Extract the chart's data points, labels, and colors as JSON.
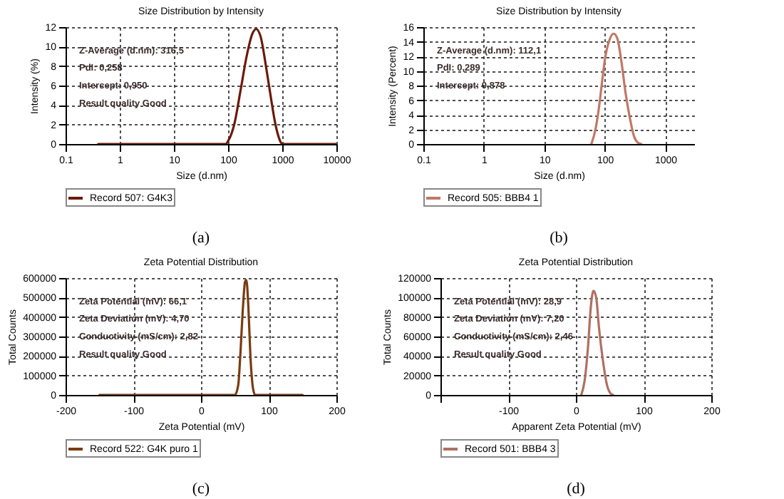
{
  "chart_data": [
    {
      "type": "line",
      "title": "Size Distribution by Intensity",
      "xlabel": "Size (d.nm)",
      "ylabel": "Intensity (%)",
      "log": "x",
      "xlim": [
        0.1,
        10000
      ],
      "xticks": [
        0.1,
        1,
        10,
        100,
        1000,
        10000
      ],
      "ylim": [
        0,
        12
      ],
      "yticks": [
        0,
        2,
        4,
        6,
        8,
        10,
        12
      ],
      "grid": true,
      "legend": "bottom",
      "series": [
        {
          "name": "Record 507: G4K3",
          "color": "#6b1a0a",
          "x": [
            0.4,
            10,
            90,
            100,
            130,
            170,
            220,
            280,
            330,
            400,
            500,
            600,
            750,
            900,
            1000,
            1100,
            10000
          ],
          "values": [
            0,
            0,
            0,
            0.3,
            2,
            5.5,
            9,
            11.3,
            11.8,
            11,
            8,
            5.2,
            2,
            0.4,
            0,
            0,
            0
          ]
        }
      ],
      "annotations": [
        "Z-Average (d.nm):  316,5",
        "PdI:  0,258",
        "Intercept:  0,950",
        "Result quality  Good",
        "(a)"
      ]
    },
    {
      "type": "line",
      "title": "Size Distribution by Intensity",
      "xlabel": "Size (d.nm)",
      "ylabel": "Intensity (Percent)",
      "log": "x",
      "xlim": [
        0.1,
        3000
      ],
      "xticks": [
        0.1,
        1,
        10,
        100,
        1000
      ],
      "ylim": [
        0,
        16
      ],
      "yticks": [
        0,
        2,
        4,
        6,
        8,
        10,
        12,
        14,
        16
      ],
      "grid": true,
      "legend": "bottom",
      "series": [
        {
          "name": "Record 505: BBB4 1",
          "color": "#c07868",
          "x": [
            60,
            70,
            80,
            90,
            100,
            120,
            140,
            160,
            190,
            220,
            260,
            300,
            350,
            400
          ],
          "values": [
            0,
            2,
            5,
            8.5,
            11.5,
            14.3,
            15.1,
            14.5,
            11,
            7,
            3.5,
            1.2,
            0.2,
            0
          ]
        }
      ],
      "annotations": [
        "Z-Average (d.nm):  112,1",
        "PdI:  0,289",
        "Intercept:  0,878",
        "(b)"
      ]
    },
    {
      "type": "line",
      "title": "Zeta Potential Distribution",
      "xlabel": "Zeta Potential (mV)",
      "ylabel": "Total Counts",
      "xlim": [
        -200,
        200
      ],
      "xticks": [
        -200,
        -100,
        0,
        100,
        200
      ],
      "ylim": [
        0,
        600000
      ],
      "yticks": [
        0,
        100000,
        200000,
        300000,
        400000,
        500000,
        600000
      ],
      "grid": true,
      "legend": "bottom",
      "series": [
        {
          "name": "Record 522: G4K puro 1",
          "color": "#7a3b10",
          "x": [
            -150,
            50,
            55,
            58,
            62,
            65,
            67,
            70,
            73,
            77,
            80,
            150
          ],
          "values": [
            0,
            0,
            50000,
            200000,
            450000,
            580000,
            590000,
            450000,
            200000,
            30000,
            0,
            0
          ]
        }
      ],
      "annotations": [
        "Zeta Potential (mV):  66,1",
        "Zeta Deviation (mV):  4,70",
        "Conductivity (mS/cm):  2,82",
        "Result quality  Good",
        "(c)"
      ]
    },
    {
      "type": "line",
      "title": "Zeta Potential Distribution",
      "xlabel": "Apparent Zeta Potential (mV)",
      "ylabel": "Total Counts",
      "xlim": [
        -200,
        200
      ],
      "xticks": [
        {
          "value": -200,
          "label": null
        },
        -100,
        0,
        100,
        200
      ],
      "ylim": [
        0,
        120000
      ],
      "yticks": [
        0,
        20000,
        40000,
        60000,
        80000,
        100000,
        120000
      ],
      "grid": true,
      "legend": "bottom",
      "series": [
        {
          "name": "Record 501: BBB4 3",
          "color": "#b07060",
          "x": [
            8,
            13,
            18,
            22,
            26,
            30,
            34,
            40,
            46,
            52,
            55
          ],
          "values": [
            0,
            15000,
            50000,
            90000,
            107000,
            100000,
            70000,
            35000,
            10000,
            1000,
            0
          ]
        }
      ],
      "annotations": [
        "Zeta Potential (mV):  28,9",
        "Zeta Deviation (mV):  7,20",
        "Conductivity (mS/cm):  2,46",
        "Result quality  Good",
        "(d)"
      ]
    }
  ]
}
